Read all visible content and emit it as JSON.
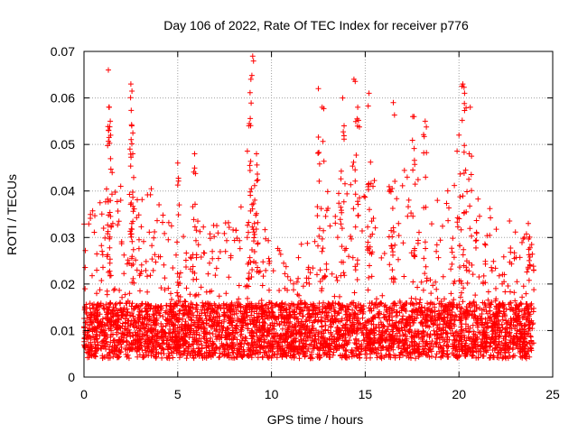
{
  "chart_data": {
    "type": "scatter",
    "title": "Day 106 of 2022, Rate Of TEC Index for receiver p776",
    "xlabel": "GPS time / hours",
    "ylabel": "ROTI / TECUs",
    "xlim": [
      0,
      25
    ],
    "ylim": [
      0,
      0.07
    ],
    "xticks": [
      "0",
      "5",
      "10",
      "15",
      "20",
      "25"
    ],
    "yticks": [
      "0",
      "0.01",
      "0.02",
      "0.03",
      "0.04",
      "0.05",
      "0.06",
      "0.07"
    ],
    "grid": true,
    "marker": "+",
    "series": [
      {
        "name": "ROTI",
        "color": "#ff0000",
        "x_range": [
          0,
          24
        ],
        "baseline_profile": {
          "hours": [
            0,
            1,
            2,
            3,
            4,
            5,
            6,
            7,
            8,
            9,
            10,
            11,
            12,
            13,
            14,
            15,
            16,
            17,
            18,
            19,
            20,
            21,
            22,
            23,
            24
          ],
          "typical_max": [
            0.022,
            0.03,
            0.034,
            0.03,
            0.028,
            0.024,
            0.022,
            0.021,
            0.024,
            0.026,
            0.019,
            0.016,
            0.017,
            0.028,
            0.034,
            0.032,
            0.03,
            0.033,
            0.03,
            0.028,
            0.03,
            0.028,
            0.024,
            0.021,
            0.018
          ]
        },
        "peaks": [
          {
            "x": 1.3,
            "y": 0.066
          },
          {
            "x": 1.35,
            "y": 0.058
          },
          {
            "x": 1.4,
            "y": 0.055
          },
          {
            "x": 2.5,
            "y": 0.063
          },
          {
            "x": 2.55,
            "y": 0.054
          },
          {
            "x": 2.6,
            "y": 0.048
          },
          {
            "x": 5.0,
            "y": 0.046
          },
          {
            "x": 5.9,
            "y": 0.048
          },
          {
            "x": 8.8,
            "y": 0.054
          },
          {
            "x": 8.9,
            "y": 0.064
          },
          {
            "x": 9.0,
            "y": 0.069
          },
          {
            "x": 9.2,
            "y": 0.048
          },
          {
            "x": 12.5,
            "y": 0.062
          },
          {
            "x": 12.7,
            "y": 0.058
          },
          {
            "x": 13.8,
            "y": 0.06
          },
          {
            "x": 14.4,
            "y": 0.064
          },
          {
            "x": 14.6,
            "y": 0.058
          },
          {
            "x": 15.2,
            "y": 0.061
          },
          {
            "x": 16.5,
            "y": 0.059
          },
          {
            "x": 17.6,
            "y": 0.056
          },
          {
            "x": 18.2,
            "y": 0.055
          },
          {
            "x": 20.2,
            "y": 0.063
          },
          {
            "x": 20.3,
            "y": 0.061
          },
          {
            "x": 20.6,
            "y": 0.058
          },
          {
            "x": 20.0,
            "y": 0.052
          },
          {
            "x": 23.7,
            "y": 0.033
          }
        ]
      }
    ]
  }
}
